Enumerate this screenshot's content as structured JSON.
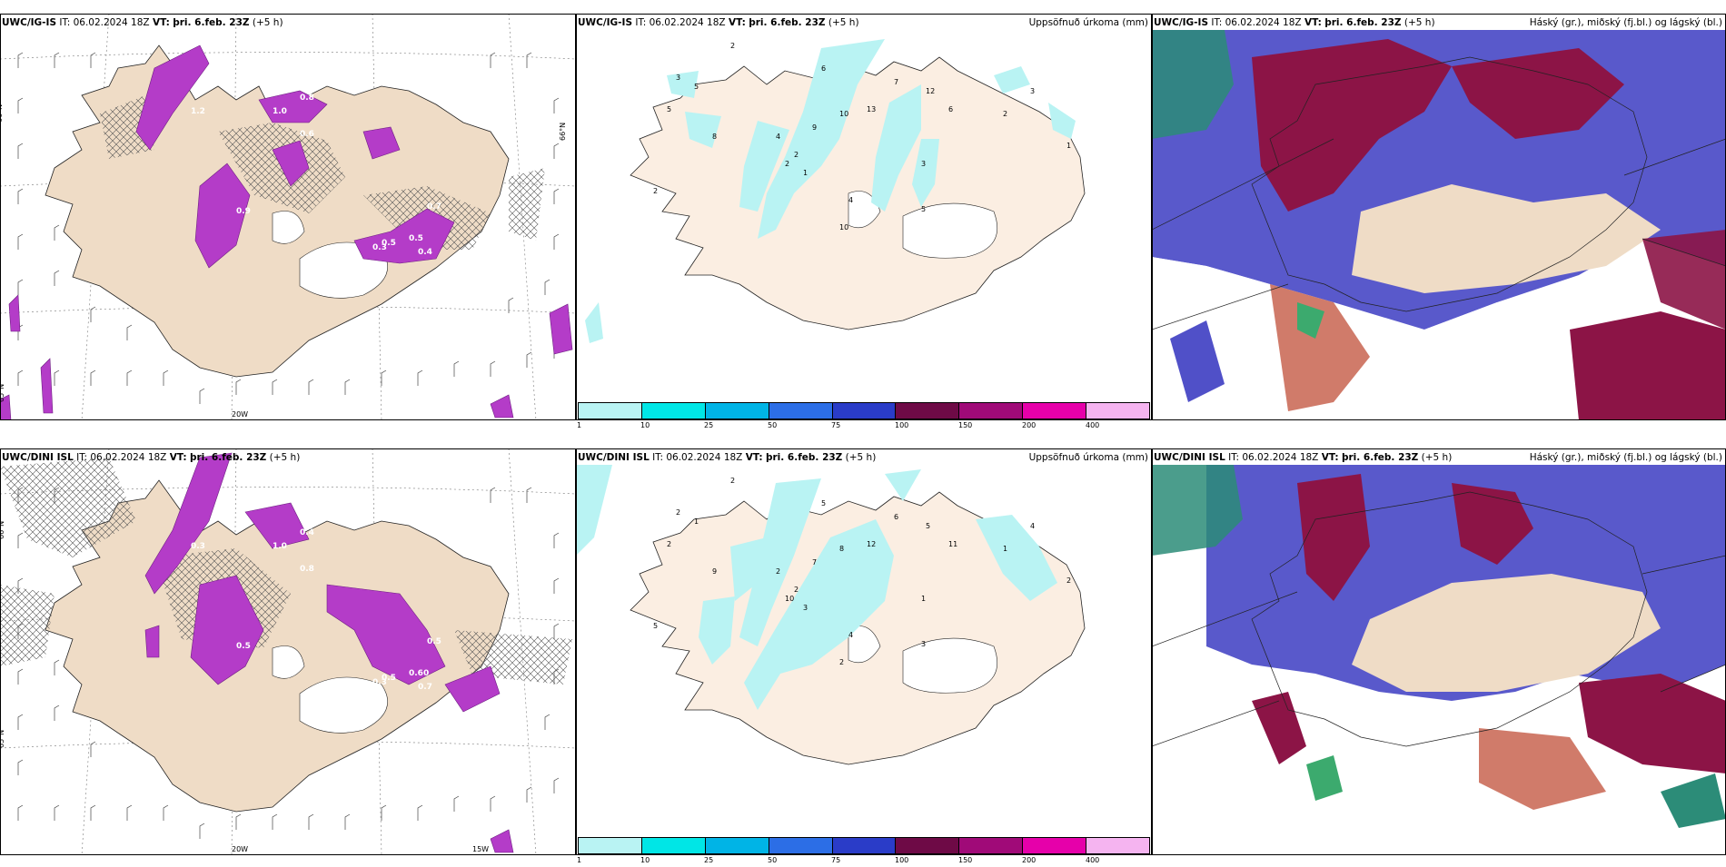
{
  "rows": [
    {
      "model": "UWC/IG-IS",
      "it": "IT: 06.02.2024 18Z",
      "vt_label": "VT:",
      "vt": "þri. 6.feb. 23Z",
      "lead": "(+5 h)",
      "lat_label": "65°N",
      "lon_label": "20W",
      "lon_label2": "",
      "precip_labels": [
        "2",
        "3",
        "5",
        "5",
        "6",
        "7",
        "8",
        "9",
        "10",
        "12",
        "13",
        "2",
        "2",
        "1",
        "4",
        "3",
        "5",
        "10",
        "4",
        "6",
        "2",
        "1",
        "3",
        "2"
      ],
      "wind_labels": [
        "0.3",
        "0.5",
        "0.4",
        "0.5",
        "1.0",
        "0.9",
        "0.6",
        "0.8",
        "1.2",
        "0.7"
      ]
    },
    {
      "model": "UWC/DINI ISL",
      "it": "IT: 06.02.2024 18Z",
      "vt_label": "VT:",
      "vt": "þri. 6.feb. 23Z",
      "lead": "(+5 h)",
      "lat_label": "65°N",
      "lon_label": "20W",
      "lon_label2": "15W",
      "precip_labels": [
        "2",
        "2",
        "1",
        "2",
        "5",
        "6",
        "9",
        "7",
        "8",
        "5",
        "12",
        "10",
        "2",
        "3",
        "4",
        "1",
        "3",
        "2",
        "2",
        "11",
        "1",
        "2",
        "4",
        "5"
      ],
      "wind_labels": [
        "0.3",
        "0.5",
        "0.7",
        "0.60",
        "1.0",
        "0.5",
        "0.8",
        "0.4",
        "0.3",
        "0.5"
      ]
    }
  ],
  "precip_title": "Uppsöfnuð úrkoma (mm)",
  "cloud_title": "Háský (gr.), miðský (fj.bl.) og lágský (bl.)",
  "colorbar": {
    "colors": [
      "#b9f3f3",
      "#00e6e6",
      "#00b4e6",
      "#2c6ee6",
      "#2a3cc8",
      "#6e0a46",
      "#a00a78",
      "#e600aa",
      "#f5b4f0"
    ],
    "ticks": [
      "1",
      "10",
      "25",
      "50",
      "75",
      "100",
      "150",
      "200",
      "400"
    ]
  },
  "colors": {
    "land": "#efdcc6",
    "land_light": "#fbeee2",
    "wind_purple": "#b43cc8",
    "low_cloud": "#5050c8",
    "mid_cloud": "#8c1446",
    "high_cloud": "#3caa6e",
    "precip": "#b9f3f3"
  }
}
